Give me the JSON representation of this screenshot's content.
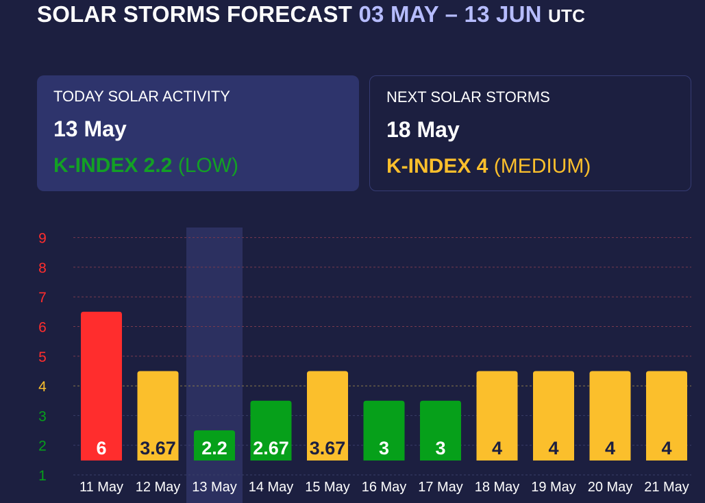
{
  "header": {
    "title": "SOLAR STORMS FORECAST",
    "range": "03 MAY – 13 JUN",
    "tz": "UTC"
  },
  "today": {
    "heading": "TODAY SOLAR ACTIVITY",
    "date": "13 May",
    "kindex_label": "K-INDEX 2.2",
    "level": "(LOW)",
    "color": "#13a025"
  },
  "next": {
    "heading": "NEXT SOLAR STORMS",
    "date": "18 May",
    "kindex_label": "K-INDEX 4",
    "level": "(MEDIUM)",
    "color": "#fbbf2c"
  },
  "colors": {
    "high": "#ff2d2d",
    "medium": "#fbbf2c",
    "low": "#06a01a",
    "background": "#1c1f40",
    "highlight": "#2c3060"
  },
  "chart_data": {
    "type": "bar",
    "categories": [
      "11 May",
      "12 May",
      "13 May",
      "14 May",
      "15 May",
      "16 May",
      "17 May",
      "18 May",
      "19 May",
      "20 May",
      "21 May"
    ],
    "values": [
      6,
      3.67,
      2.2,
      2.67,
      3.67,
      3,
      3,
      4,
      4,
      4,
      4
    ],
    "value_labels": [
      "6",
      "3.67",
      "2.2",
      "2.67",
      "3.67",
      "3",
      "3",
      "4",
      "4",
      "4",
      "4"
    ],
    "visual_levels": [
      6.5,
      4.5,
      2.5,
      3.5,
      4.5,
      3.5,
      3.5,
      4.5,
      4.5,
      4.5,
      4.5
    ],
    "levels": [
      "high",
      "medium",
      "low",
      "low",
      "medium",
      "low",
      "low",
      "medium",
      "medium",
      "medium",
      "medium"
    ],
    "highlighted_index": 2,
    "y_ticks": [
      1,
      2,
      3,
      4,
      5,
      6,
      7,
      8,
      9
    ],
    "ylim": [
      1,
      9
    ],
    "grid": true,
    "ylabel": "",
    "xlabel": "",
    "title": ""
  }
}
